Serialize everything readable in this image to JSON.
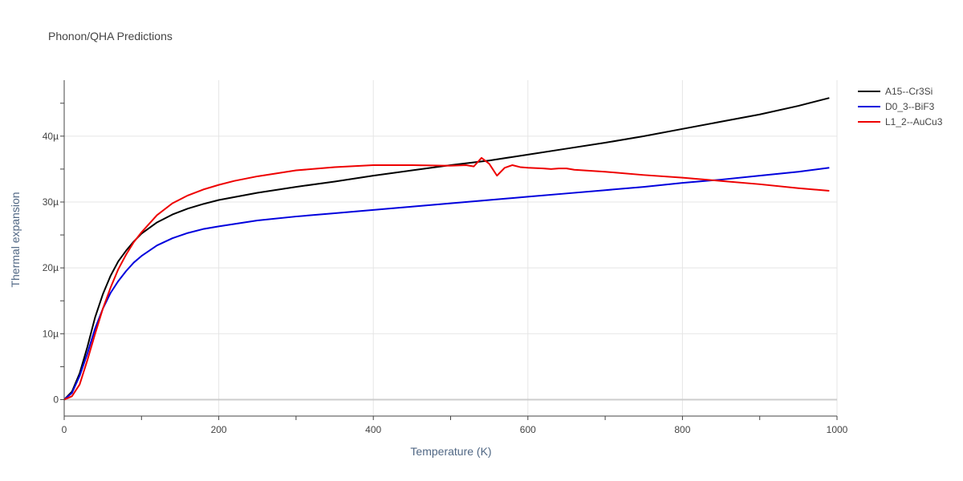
{
  "chart_data": {
    "type": "line",
    "title": "Phonon/QHA Predictions",
    "xlabel": "Temperature (K)",
    "ylabel": "Thermal expansion",
    "xlim": [
      0,
      1000
    ],
    "ylim": [
      -2.5e-06,
      4.85e-05
    ],
    "x_ticks": [
      0,
      200,
      400,
      600,
      800,
      1000
    ],
    "y_ticks": [
      0,
      1e-05,
      2e-05,
      3e-05,
      4e-05
    ],
    "x_tick_labels": [
      "0",
      "200",
      "400",
      "600",
      "800",
      "1000"
    ],
    "y_tick_labels": [
      "0",
      "10µ",
      "20µ",
      "30µ",
      "40µ"
    ],
    "grid": true,
    "legend_position": "top-right-outside",
    "colors": {
      "grid": "#e5e5e5",
      "zero_line": "#cccccc",
      "axis": "#444444"
    },
    "series": [
      {
        "name": "A15--Cr3Si",
        "color": "#000000",
        "x": [
          0,
          10,
          20,
          30,
          40,
          50,
          60,
          70,
          80,
          90,
          100,
          120,
          140,
          160,
          180,
          200,
          250,
          300,
          350,
          400,
          450,
          500,
          550,
          600,
          650,
          700,
          750,
          800,
          850,
          900,
          950,
          990
        ],
        "y": [
          0,
          1.2e-06,
          4e-06,
          8e-06,
          1.25e-05,
          1.6e-05,
          1.88e-05,
          2.1e-05,
          2.26e-05,
          2.4e-05,
          2.52e-05,
          2.69e-05,
          2.81e-05,
          2.9e-05,
          2.97e-05,
          3.03e-05,
          3.14e-05,
          3.23e-05,
          3.31e-05,
          3.4e-05,
          3.48e-05,
          3.56e-05,
          3.63e-05,
          3.72e-05,
          3.81e-05,
          3.9e-05,
          4e-05,
          4.11e-05,
          4.22e-05,
          4.33e-05,
          4.46e-05,
          4.58e-05
        ]
      },
      {
        "name": "D0_3--BiF3",
        "color": "#0000dd",
        "x": [
          0,
          10,
          20,
          30,
          40,
          50,
          60,
          70,
          80,
          90,
          100,
          120,
          140,
          160,
          180,
          200,
          250,
          300,
          350,
          400,
          450,
          500,
          550,
          600,
          650,
          700,
          750,
          800,
          850,
          900,
          950,
          990
        ],
        "y": [
          0,
          1e-06,
          3.6e-06,
          7e-06,
          1.08e-05,
          1.38e-05,
          1.62e-05,
          1.8e-05,
          1.95e-05,
          2.08e-05,
          2.18e-05,
          2.34e-05,
          2.45e-05,
          2.53e-05,
          2.59e-05,
          2.63e-05,
          2.72e-05,
          2.78e-05,
          2.83e-05,
          2.88e-05,
          2.93e-05,
          2.98e-05,
          3.03e-05,
          3.08e-05,
          3.13e-05,
          3.18e-05,
          3.23e-05,
          3.29e-05,
          3.34e-05,
          3.4e-05,
          3.46e-05,
          3.52e-05
        ]
      },
      {
        "name": "L1_2--AuCu3",
        "color": "#ee0000",
        "x": [
          0,
          10,
          20,
          30,
          40,
          50,
          60,
          70,
          80,
          90,
          100,
          120,
          140,
          160,
          180,
          200,
          220,
          250,
          300,
          350,
          400,
          450,
          500,
          520,
          530,
          540,
          550,
          560,
          570,
          580,
          590,
          600,
          620,
          630,
          640,
          650,
          660,
          700,
          750,
          800,
          850,
          900,
          950,
          990
        ],
        "y": [
          0,
          5e-07,
          2.3e-06,
          6e-06,
          1e-05,
          1.38e-05,
          1.7e-05,
          1.98e-05,
          2.2e-05,
          2.39e-05,
          2.54e-05,
          2.8e-05,
          2.98e-05,
          3.1e-05,
          3.19e-05,
          3.26e-05,
          3.32e-05,
          3.39e-05,
          3.48e-05,
          3.53e-05,
          3.56e-05,
          3.56e-05,
          3.55e-05,
          3.56e-05,
          3.54e-05,
          3.67e-05,
          3.58e-05,
          3.4e-05,
          3.52e-05,
          3.56e-05,
          3.53e-05,
          3.52e-05,
          3.51e-05,
          3.5e-05,
          3.51e-05,
          3.51e-05,
          3.49e-05,
          3.46e-05,
          3.41e-05,
          3.37e-05,
          3.32e-05,
          3.27e-05,
          3.21e-05,
          3.17e-05
        ]
      }
    ]
  }
}
